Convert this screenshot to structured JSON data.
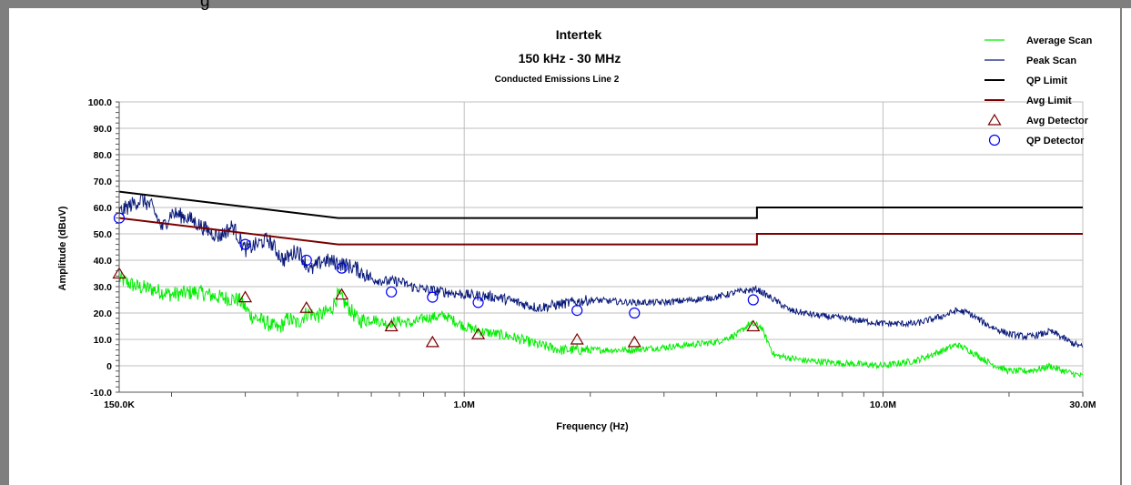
{
  "window": {
    "caption_fragment": "g"
  },
  "colors": {
    "average_scan": "#00ee00",
    "peak_scan": "#0a1a7a",
    "qp_limit": "#000000",
    "avg_limit": "#7a0000",
    "avg_detector": "#7a0000",
    "qp_detector": "#0000ff",
    "grid": "#bfbfbf"
  },
  "chart_data": {
    "type": "line",
    "title": "Intertek",
    "subtitle": "150 kHz - 30 MHz",
    "subtitle2": "Conducted Emissions Line 2",
    "xlabel": "Frequency (Hz)",
    "ylabel": "Amplitude (dBuV)",
    "x_scale": "log",
    "xlim": [
      0.15,
      30
    ],
    "ylim": [
      -10,
      100
    ],
    "grid": true,
    "legend_position": "top-right",
    "x_ticks": [
      {
        "value": 0.15,
        "label": "150.0K"
      },
      {
        "value": 1,
        "label": "1.0M"
      },
      {
        "value": 10,
        "label": "10.0M"
      },
      {
        "value": 30,
        "label": "30.0M"
      }
    ],
    "y_ticks": [
      {
        "value": 100,
        "label": "100.0"
      },
      {
        "value": 90,
        "label": "90.0"
      },
      {
        "value": 80,
        "label": "80.0"
      },
      {
        "value": 70,
        "label": "70.0"
      },
      {
        "value": 60,
        "label": "60.0"
      },
      {
        "value": 50,
        "label": "50.0"
      },
      {
        "value": 40,
        "label": "40.0"
      },
      {
        "value": 30,
        "label": "30.0"
      },
      {
        "value": 20,
        "label": "20.0"
      },
      {
        "value": 10,
        "label": "10.0"
      },
      {
        "value": 0,
        "label": "0"
      },
      {
        "value": -10,
        "label": "-10.0"
      }
    ],
    "series": [
      {
        "name": "Average Scan",
        "style": "line",
        "color": "#00ee00",
        "points": [
          [
            0.15,
            33
          ],
          [
            0.165,
            30
          ],
          [
            0.18,
            29
          ],
          [
            0.2,
            27
          ],
          [
            0.23,
            28
          ],
          [
            0.26,
            26
          ],
          [
            0.29,
            25
          ],
          [
            0.31,
            19
          ],
          [
            0.33,
            17
          ],
          [
            0.36,
            14
          ],
          [
            0.38,
            18
          ],
          [
            0.4,
            16
          ],
          [
            0.42,
            20
          ],
          [
            0.45,
            19
          ],
          [
            0.48,
            21
          ],
          [
            0.5,
            27
          ],
          [
            0.53,
            22
          ],
          [
            0.56,
            17
          ],
          [
            0.6,
            18
          ],
          [
            0.65,
            16
          ],
          [
            0.7,
            17
          ],
          [
            0.75,
            16
          ],
          [
            0.8,
            18
          ],
          [
            0.9,
            19
          ],
          [
            1.0,
            15
          ],
          [
            1.1,
            13
          ],
          [
            1.3,
            11
          ],
          [
            1.5,
            8
          ],
          [
            1.7,
            6
          ],
          [
            2.0,
            6
          ],
          [
            2.5,
            6
          ],
          [
            3.0,
            7
          ],
          [
            3.5,
            8
          ],
          [
            4.0,
            9
          ],
          [
            4.5,
            12
          ],
          [
            4.8,
            16
          ],
          [
            5.1,
            15
          ],
          [
            5.5,
            4
          ],
          [
            6.5,
            2
          ],
          [
            8,
            1
          ],
          [
            10,
            0
          ],
          [
            12,
            2
          ],
          [
            14,
            6
          ],
          [
            15,
            8
          ],
          [
            16,
            6
          ],
          [
            18,
            1
          ],
          [
            20,
            -2
          ],
          [
            22,
            -2
          ],
          [
            24,
            -1
          ],
          [
            25,
            0
          ],
          [
            27,
            -2
          ],
          [
            30,
            -4
          ]
        ]
      },
      {
        "name": "Peak Scan",
        "style": "line",
        "color": "#0a1a7a",
        "points": [
          [
            0.15,
            58
          ],
          [
            0.16,
            61
          ],
          [
            0.17,
            63
          ],
          [
            0.18,
            60
          ],
          [
            0.19,
            52
          ],
          [
            0.2,
            58
          ],
          [
            0.22,
            56
          ],
          [
            0.24,
            52
          ],
          [
            0.26,
            49
          ],
          [
            0.28,
            53
          ],
          [
            0.3,
            44
          ],
          [
            0.32,
            46
          ],
          [
            0.34,
            48
          ],
          [
            0.37,
            40
          ],
          [
            0.4,
            44
          ],
          [
            0.43,
            36
          ],
          [
            0.46,
            40
          ],
          [
            0.5,
            39
          ],
          [
            0.55,
            37
          ],
          [
            0.6,
            33
          ],
          [
            0.65,
            32
          ],
          [
            0.7,
            32
          ],
          [
            0.75,
            30
          ],
          [
            0.8,
            29
          ],
          [
            0.9,
            28
          ],
          [
            1.0,
            27
          ],
          [
            1.2,
            26
          ],
          [
            1.5,
            22
          ],
          [
            1.8,
            24
          ],
          [
            2.0,
            25
          ],
          [
            2.5,
            24
          ],
          [
            3.0,
            24
          ],
          [
            3.5,
            25
          ],
          [
            4.0,
            26
          ],
          [
            4.5,
            28
          ],
          [
            5.0,
            29
          ],
          [
            5.5,
            25
          ],
          [
            6.0,
            21
          ],
          [
            7,
            19
          ],
          [
            8,
            18
          ],
          [
            10,
            16
          ],
          [
            12,
            16
          ],
          [
            14,
            19
          ],
          [
            15,
            21
          ],
          [
            16,
            20
          ],
          [
            18,
            15
          ],
          [
            20,
            12
          ],
          [
            22,
            11
          ],
          [
            24,
            12
          ],
          [
            25,
            13
          ],
          [
            26,
            12
          ],
          [
            28,
            9
          ],
          [
            30,
            7
          ]
        ]
      },
      {
        "name": "QP Limit",
        "style": "line",
        "color": "#000000",
        "points": [
          [
            0.15,
            66
          ],
          [
            0.5,
            56
          ],
          [
            5,
            56
          ],
          [
            5,
            60
          ],
          [
            30,
            60
          ]
        ]
      },
      {
        "name": "Avg Limit",
        "style": "line",
        "color": "#7a0000",
        "points": [
          [
            0.15,
            56
          ],
          [
            0.5,
            46
          ],
          [
            5,
            46
          ],
          [
            5,
            50
          ],
          [
            30,
            50
          ]
        ]
      },
      {
        "name": "Avg Detector",
        "style": "triangle",
        "color": "#7a0000",
        "points": [
          [
            0.15,
            35
          ],
          [
            0.3,
            26
          ],
          [
            0.42,
            22
          ],
          [
            0.51,
            27
          ],
          [
            0.67,
            15
          ],
          [
            0.84,
            9
          ],
          [
            1.08,
            12
          ],
          [
            1.86,
            10
          ],
          [
            2.55,
            9
          ],
          [
            4.9,
            15
          ]
        ]
      },
      {
        "name": "QP Detector",
        "style": "circle",
        "color": "#0000ff",
        "points": [
          [
            0.15,
            56
          ],
          [
            0.3,
            46
          ],
          [
            0.42,
            40
          ],
          [
            0.51,
            37
          ],
          [
            0.67,
            28
          ],
          [
            0.84,
            26
          ],
          [
            1.08,
            24
          ],
          [
            1.86,
            21
          ],
          [
            2.55,
            20
          ],
          [
            4.9,
            25
          ]
        ]
      }
    ]
  }
}
